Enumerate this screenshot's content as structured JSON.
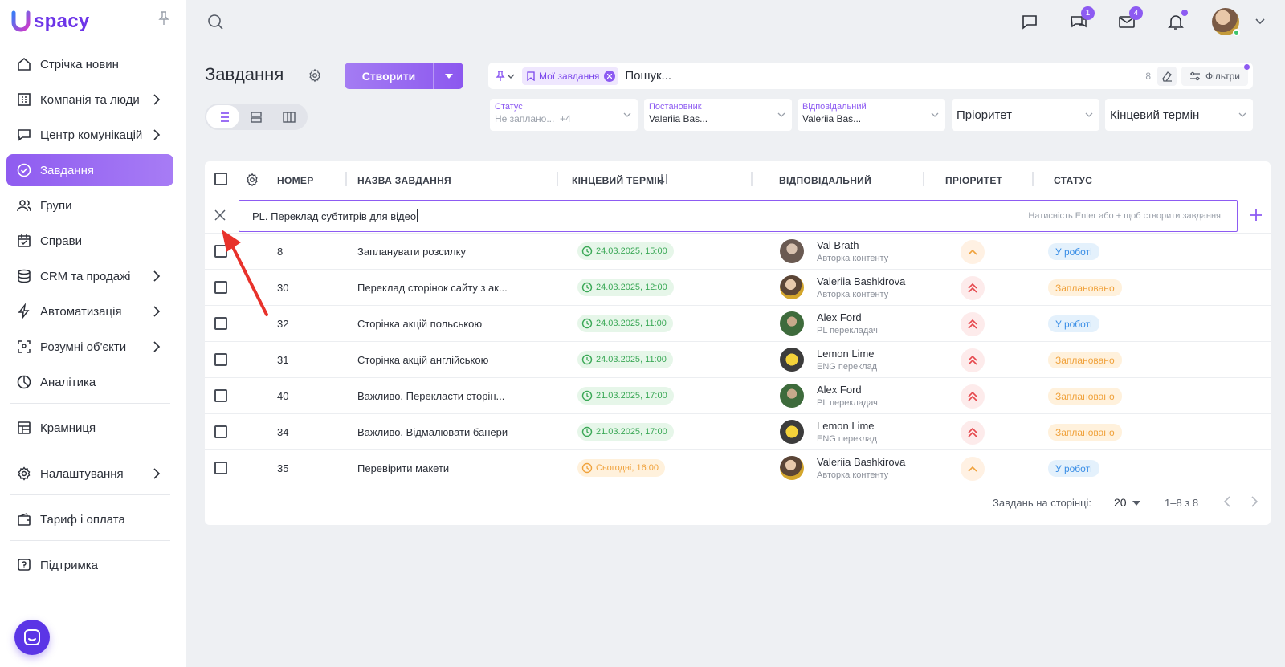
{
  "app": {
    "logo_text": "spacy"
  },
  "sidebar": {
    "items": [
      {
        "label": "Стрічка новин"
      },
      {
        "label": "Компанія та люди"
      },
      {
        "label": "Центр комунікацій"
      },
      {
        "label": "Завдання"
      },
      {
        "label": "Групи"
      },
      {
        "label": "Справи"
      },
      {
        "label": "CRM та продажі"
      },
      {
        "label": "Автоматизація"
      },
      {
        "label": "Розумні об'єкти"
      },
      {
        "label": "Аналітика"
      },
      {
        "label": "Крамниця"
      },
      {
        "label": "Налаштування"
      },
      {
        "label": "Тариф і оплата"
      },
      {
        "label": "Підтримка"
      }
    ]
  },
  "topbar": {
    "badges": {
      "chat": "1",
      "mail": "4"
    }
  },
  "header": {
    "title": "Завдання",
    "create_label": "Створити"
  },
  "search": {
    "chip_label": "Мої завдання",
    "placeholder": "Пошук...",
    "count": "8",
    "filters_label": "Фільтри"
  },
  "filters": {
    "status": {
      "label": "Статус",
      "value": "Не заплано...",
      "extra": "+4"
    },
    "creator": {
      "label": "Постановник",
      "value": "Valeriia Bas..."
    },
    "assignee": {
      "label": "Відповідальний",
      "value": "Valeriia Bas..."
    },
    "priority": {
      "value": "Пріоритет"
    },
    "deadline": {
      "value": "Кінцевий термін"
    }
  },
  "table": {
    "headers": {
      "number": "НОМЕР",
      "name": "НАЗВА ЗАВДАННЯ",
      "deadline": "КІНЦЕВИЙ ТЕРМІН",
      "assignee": "ВІДПОВІДАЛЬНИЙ",
      "priority": "ПРІОРИТЕТ",
      "status": "СТАТУС"
    },
    "new_task": {
      "value": "PL. Переклад субтитрів для відео",
      "hint": "Натисність Enter або + щоб створити завдання"
    },
    "rows": [
      {
        "num": "8",
        "name": "Запланувати розсилку",
        "date": "24.03.2025, 15:00",
        "person": "Val Brath",
        "role": "Авторка контенту",
        "status": "У роботі"
      },
      {
        "num": "30",
        "name": "Переклад сторінок сайту з ак...",
        "date": "24.03.2025, 12:00",
        "person": "Valeriia Bashkirova",
        "role": "Авторка контенту",
        "status": "Заплановано"
      },
      {
        "num": "32",
        "name": "Сторінка акцій польською",
        "date": "24.03.2025, 11:00",
        "person": "Alex Ford",
        "role": "PL перекладач",
        "status": "У роботі"
      },
      {
        "num": "31",
        "name": "Сторінка акцій англійською",
        "date": "24.03.2025, 11:00",
        "person": "Lemon Lime",
        "role": "ENG переклад",
        "status": "Заплановано"
      },
      {
        "num": "40",
        "name": "Важливо. Перекласти сторін...",
        "date": "21.03.2025, 17:00",
        "person": "Alex Ford",
        "role": "PL перекладач",
        "status": "Заплановано"
      },
      {
        "num": "34",
        "name": "Важливо. Відмалювати банери",
        "date": "21.03.2025, 17:00",
        "person": "Lemon Lime",
        "role": "ENG переклад",
        "status": "Заплановано"
      },
      {
        "num": "35",
        "name": "Перевірити макети",
        "date": "Сьогодні, 16:00",
        "person": "Valeriia Bashkirova",
        "role": "Авторка контенту",
        "status": "У роботі"
      }
    ],
    "footer": {
      "per_page_label": "Завдань на сторінці:",
      "per_page_value": "20",
      "range": "1–8 з 8"
    }
  },
  "colors": {
    "accent": "#8d5bf2",
    "work": "#3a8ee6",
    "planned": "#f0a23c",
    "date_ok": "#3aa856"
  }
}
